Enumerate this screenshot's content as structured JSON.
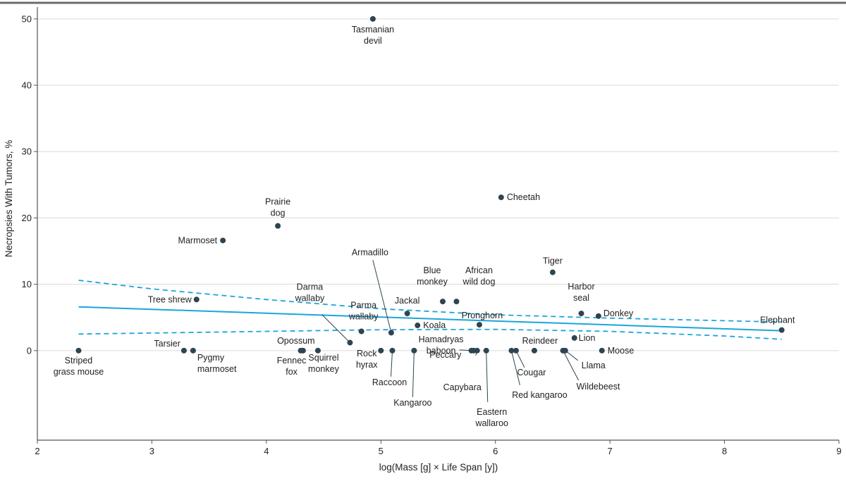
{
  "chart_data": {
    "type": "scatter",
    "title": "",
    "xlabel": "log(Mass [g] × Life Span [y])",
    "ylabel": "Necropsies With Tumors, %",
    "xlim": [
      2,
      9
    ],
    "ylim": [
      -13.5,
      52
    ],
    "xticks": [
      2,
      3,
      4,
      5,
      6,
      7,
      8,
      9
    ],
    "yticks": [
      0,
      10,
      20,
      30,
      40,
      50
    ],
    "grid": "horizontal",
    "colors": {
      "point": "#2d4550",
      "fit": "#1aa6dc",
      "grid": "#d9d9d9",
      "axis": "#555555",
      "top_rule": "#6b6b6b",
      "leader": "#2d4550"
    },
    "points": [
      {
        "name": "Striped\ngrass mouse",
        "x": 2.36,
        "y": 0
      },
      {
        "name": "Tarsier",
        "x": 3.28,
        "y": 0
      },
      {
        "name": "Pygmy\nmarmoset",
        "x": 3.36,
        "y": 0
      },
      {
        "name": "Tree shrew",
        "x": 3.39,
        "y": 7.7
      },
      {
        "name": "Marmoset",
        "x": 3.62,
        "y": 16.6
      },
      {
        "name": "Prairie\ndog",
        "x": 4.1,
        "y": 18.8
      },
      {
        "name": "Opossum",
        "x": 4.32,
        "y": 0
      },
      {
        "name": "Fennec\nfox",
        "x": 4.3,
        "y": 0
      },
      {
        "name": "Squirrel\nmonkey",
        "x": 4.45,
        "y": 0
      },
      {
        "name": "Darma\nwallaby",
        "x": 4.73,
        "y": 1.2
      },
      {
        "name": "Parma\nwallaby",
        "x": 4.83,
        "y": 2.9
      },
      {
        "name": "Tasmanian\ndevil",
        "x": 4.93,
        "y": 50
      },
      {
        "name": "Rock\nhyrax",
        "x": 5.0,
        "y": 0
      },
      {
        "name": "Armadillo",
        "x": 5.09,
        "y": 2.7
      },
      {
        "name": "Raccoon",
        "x": 5.1,
        "y": 0
      },
      {
        "name": "Jackal",
        "x": 5.23,
        "y": 5.6
      },
      {
        "name": "Koala",
        "x": 5.32,
        "y": 3.8
      },
      {
        "name": "Kangaroo",
        "x": 5.29,
        "y": 0
      },
      {
        "name": "Blue\nmonkey",
        "x": 5.54,
        "y": 7.4
      },
      {
        "name": "African\nwild dog",
        "x": 5.66,
        "y": 7.4
      },
      {
        "name": "Hamadryas\nbaboon",
        "x": 5.79,
        "y": 0
      },
      {
        "name": "Peccary",
        "x": 5.81,
        "y": 0
      },
      {
        "name": "Capybara",
        "x": 5.84,
        "y": 0
      },
      {
        "name": "Pronghorn",
        "x": 5.86,
        "y": 3.9
      },
      {
        "name": "Eastern\nwallaroo",
        "x": 5.92,
        "y": 0
      },
      {
        "name": "Cheetah",
        "x": 6.05,
        "y": 23.1
      },
      {
        "name": "Red kangaroo",
        "x": 6.14,
        "y": 0
      },
      {
        "name": "Cougar",
        "x": 6.18,
        "y": 0
      },
      {
        "name": "Reindeer",
        "x": 6.34,
        "y": 0
      },
      {
        "name": "Tiger",
        "x": 6.5,
        "y": 11.8
      },
      {
        "name": "Wildebeest",
        "x": 6.59,
        "y": 0
      },
      {
        "name": "Llama",
        "x": 6.61,
        "y": 0
      },
      {
        "name": "Lion",
        "x": 6.69,
        "y": 1.9
      },
      {
        "name": "Harbor\nseal",
        "x": 6.75,
        "y": 5.6
      },
      {
        "name": "Donkey",
        "x": 6.9,
        "y": 5.2
      },
      {
        "name": "Moose",
        "x": 6.93,
        "y": 0
      },
      {
        "name": "Elephant",
        "x": 8.5,
        "y": 3.1
      }
    ],
    "fit": {
      "x": [
        2.36,
        8.5
      ],
      "y": [
        6.6,
        3.0
      ],
      "ci_lower": {
        "x": [
          2.36,
          3.0,
          4.0,
          5.0,
          6.0,
          7.0,
          8.0,
          8.5
        ],
        "y": [
          2.5,
          2.65,
          2.9,
          3.15,
          3.2,
          2.9,
          2.2,
          1.7
        ]
      },
      "ci_upper": {
        "x": [
          2.36,
          3.0,
          4.0,
          5.0,
          6.0,
          7.0,
          8.0,
          8.5
        ],
        "y": [
          10.6,
          9.3,
          7.7,
          6.3,
          5.4,
          4.9,
          4.5,
          4.3
        ]
      }
    }
  }
}
